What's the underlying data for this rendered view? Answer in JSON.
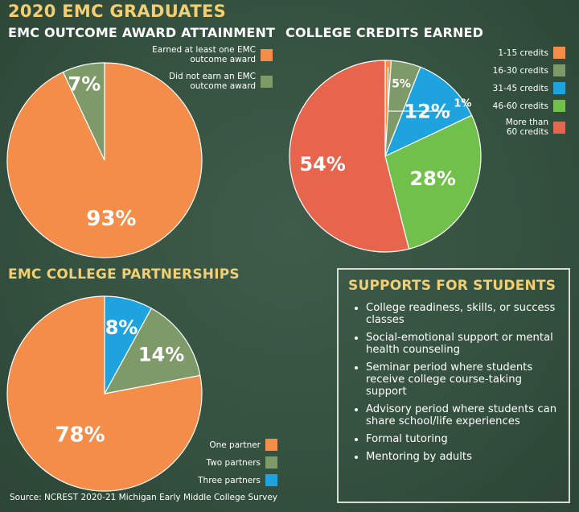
{
  "main_title": "2020 EMC GRADUATES",
  "chart_data": [
    {
      "type": "pie",
      "title": "EMC OUTCOME AWARD ATTAINMENT",
      "categories": [
        "Earned at least one EMC outcome award",
        "Did not earn an EMC outcome award"
      ],
      "legend_lines": [
        [
          "Earned at least one EMC",
          "outcome award"
        ],
        [
          "Did not earn an EMC",
          "outcome award"
        ]
      ],
      "values": [
        93,
        7
      ],
      "labels": [
        "93%",
        "7%"
      ],
      "colors": [
        "#f48c4a",
        "#7f9a69"
      ],
      "legend": "top-right"
    },
    {
      "type": "pie",
      "title": "COLLEGE CREDITS EARNED",
      "categories": [
        "1-15 credits",
        "16-30 credits",
        "31-45 credits",
        "46-60 credits",
        "More than 60 credits"
      ],
      "legend_lines": [
        [
          "1-15 credits"
        ],
        [
          "16-30 credits"
        ],
        [
          "31-45 credits"
        ],
        [
          "46-60 credits"
        ],
        [
          "More than",
          "60 credits"
        ]
      ],
      "values": [
        1,
        5,
        12,
        28,
        54
      ],
      "labels": [
        "1%",
        "5%",
        "12%",
        "28%",
        "54%"
      ],
      "colors": [
        "#f48c4a",
        "#7f9a69",
        "#1ea3de",
        "#71c04b",
        "#e8654d"
      ],
      "legend": "top-right"
    },
    {
      "type": "pie",
      "title": "EMC COLLEGE PARTNERSHIPS",
      "categories": [
        "One partner",
        "Two partners",
        "Three partners"
      ],
      "legend_lines": [
        [
          "One partner"
        ],
        [
          "Two partners"
        ],
        [
          "Three partners"
        ]
      ],
      "values": [
        78,
        14,
        8
      ],
      "labels": [
        "78%",
        "14%",
        "8%"
      ],
      "colors": [
        "#f48c4a",
        "#7f9a69",
        "#1ea3de"
      ],
      "legend": "bottom-right"
    }
  ],
  "supports": {
    "title": "SUPPORTS FOR STUDENTS",
    "items": [
      "College readiness, skills, or success classes",
      "Social-emotional support or mental health counseling",
      "Seminar period where students receive college course-taking support",
      "Advisory period where students can share school/life experiences",
      "Formal tutoring",
      "Mentoring by adults"
    ]
  },
  "source": "Source: NCREST 2020-21 Michigan Early Middle College Survey"
}
